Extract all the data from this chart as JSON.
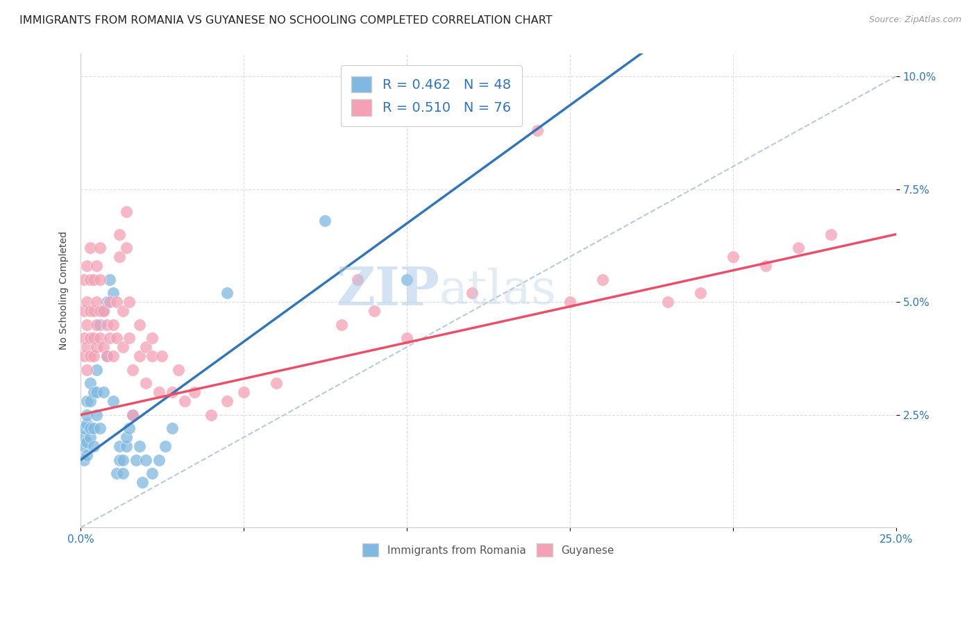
{
  "title": "IMMIGRANTS FROM ROMANIA VS GUYANESE NO SCHOOLING COMPLETED CORRELATION CHART",
  "source_text": "Source: ZipAtlas.com",
  "ylabel": "No Schooling Completed",
  "xlim": [
    0.0,
    0.25
  ],
  "ylim": [
    0.0,
    0.105
  ],
  "xtick_labels": [
    "0.0%",
    "",
    "",
    "",
    "",
    "25.0%"
  ],
  "xtick_values": [
    0.0,
    0.05,
    0.1,
    0.15,
    0.2,
    0.25
  ],
  "ytick_labels": [
    "2.5%",
    "5.0%",
    "7.5%",
    "10.0%"
  ],
  "ytick_values": [
    0.025,
    0.05,
    0.075,
    0.1
  ],
  "romania_color": "#7fb8e0",
  "guyanese_color": "#f4a0b5",
  "trend_romania_color": "#3375b5",
  "trend_guyanese_color": "#e8506a",
  "romania_R": 0.462,
  "romania_N": 48,
  "guyanese_R": 0.51,
  "guyanese_N": 76,
  "legend_label_romania": "Immigrants from Romania",
  "legend_label_guyanese": "Guyanese",
  "title_fontsize": 11.5,
  "axis_label_fontsize": 10,
  "tick_fontsize": 11,
  "background_color": "#ffffff",
  "grid_color": "#dddddd",
  "watermark_zip": "ZIP",
  "watermark_atlas": "atlas",
  "romania_scatter": [
    [
      0.001,
      0.015
    ],
    [
      0.001,
      0.018
    ],
    [
      0.001,
      0.02
    ],
    [
      0.001,
      0.022
    ],
    [
      0.002,
      0.016
    ],
    [
      0.002,
      0.019
    ],
    [
      0.002,
      0.023
    ],
    [
      0.002,
      0.025
    ],
    [
      0.002,
      0.028
    ],
    [
      0.003,
      0.02
    ],
    [
      0.003,
      0.022
    ],
    [
      0.003,
      0.028
    ],
    [
      0.003,
      0.032
    ],
    [
      0.004,
      0.018
    ],
    [
      0.004,
      0.022
    ],
    [
      0.004,
      0.03
    ],
    [
      0.005,
      0.025
    ],
    [
      0.005,
      0.03
    ],
    [
      0.005,
      0.035
    ],
    [
      0.006,
      0.022
    ],
    [
      0.006,
      0.045
    ],
    [
      0.007,
      0.048
    ],
    [
      0.007,
      0.03
    ],
    [
      0.008,
      0.05
    ],
    [
      0.008,
      0.038
    ],
    [
      0.009,
      0.055
    ],
    [
      0.01,
      0.052
    ],
    [
      0.01,
      0.028
    ],
    [
      0.011,
      0.012
    ],
    [
      0.012,
      0.015
    ],
    [
      0.012,
      0.018
    ],
    [
      0.013,
      0.012
    ],
    [
      0.013,
      0.015
    ],
    [
      0.014,
      0.018
    ],
    [
      0.014,
      0.02
    ],
    [
      0.015,
      0.022
    ],
    [
      0.016,
      0.025
    ],
    [
      0.017,
      0.015
    ],
    [
      0.018,
      0.018
    ],
    [
      0.019,
      0.01
    ],
    [
      0.02,
      0.015
    ],
    [
      0.022,
      0.012
    ],
    [
      0.024,
      0.015
    ],
    [
      0.026,
      0.018
    ],
    [
      0.028,
      0.022
    ],
    [
      0.045,
      0.052
    ],
    [
      0.075,
      0.068
    ],
    [
      0.1,
      0.055
    ]
  ],
  "guyanese_scatter": [
    [
      0.001,
      0.038
    ],
    [
      0.001,
      0.042
    ],
    [
      0.001,
      0.048
    ],
    [
      0.001,
      0.055
    ],
    [
      0.002,
      0.035
    ],
    [
      0.002,
      0.04
    ],
    [
      0.002,
      0.045
    ],
    [
      0.002,
      0.05
    ],
    [
      0.002,
      0.058
    ],
    [
      0.003,
      0.038
    ],
    [
      0.003,
      0.042
    ],
    [
      0.003,
      0.048
    ],
    [
      0.003,
      0.055
    ],
    [
      0.003,
      0.062
    ],
    [
      0.004,
      0.038
    ],
    [
      0.004,
      0.042
    ],
    [
      0.004,
      0.048
    ],
    [
      0.004,
      0.055
    ],
    [
      0.005,
      0.04
    ],
    [
      0.005,
      0.045
    ],
    [
      0.005,
      0.05
    ],
    [
      0.005,
      0.058
    ],
    [
      0.006,
      0.042
    ],
    [
      0.006,
      0.048
    ],
    [
      0.006,
      0.055
    ],
    [
      0.006,
      0.062
    ],
    [
      0.007,
      0.04
    ],
    [
      0.007,
      0.048
    ],
    [
      0.008,
      0.038
    ],
    [
      0.008,
      0.045
    ],
    [
      0.009,
      0.042
    ],
    [
      0.009,
      0.05
    ],
    [
      0.01,
      0.038
    ],
    [
      0.01,
      0.045
    ],
    [
      0.011,
      0.042
    ],
    [
      0.011,
      0.05
    ],
    [
      0.012,
      0.06
    ],
    [
      0.012,
      0.065
    ],
    [
      0.013,
      0.04
    ],
    [
      0.013,
      0.048
    ],
    [
      0.014,
      0.062
    ],
    [
      0.014,
      0.07
    ],
    [
      0.015,
      0.042
    ],
    [
      0.015,
      0.05
    ],
    [
      0.016,
      0.025
    ],
    [
      0.016,
      0.035
    ],
    [
      0.018,
      0.038
    ],
    [
      0.018,
      0.045
    ],
    [
      0.02,
      0.032
    ],
    [
      0.02,
      0.04
    ],
    [
      0.022,
      0.038
    ],
    [
      0.022,
      0.042
    ],
    [
      0.024,
      0.03
    ],
    [
      0.025,
      0.038
    ],
    [
      0.028,
      0.03
    ],
    [
      0.03,
      0.035
    ],
    [
      0.032,
      0.028
    ],
    [
      0.035,
      0.03
    ],
    [
      0.04,
      0.025
    ],
    [
      0.045,
      0.028
    ],
    [
      0.05,
      0.03
    ],
    [
      0.06,
      0.032
    ],
    [
      0.08,
      0.045
    ],
    [
      0.085,
      0.055
    ],
    [
      0.09,
      0.048
    ],
    [
      0.1,
      0.042
    ],
    [
      0.12,
      0.052
    ],
    [
      0.14,
      0.088
    ],
    [
      0.15,
      0.05
    ],
    [
      0.16,
      0.055
    ],
    [
      0.18,
      0.05
    ],
    [
      0.19,
      0.052
    ],
    [
      0.2,
      0.06
    ],
    [
      0.21,
      0.058
    ],
    [
      0.22,
      0.062
    ],
    [
      0.23,
      0.065
    ]
  ]
}
